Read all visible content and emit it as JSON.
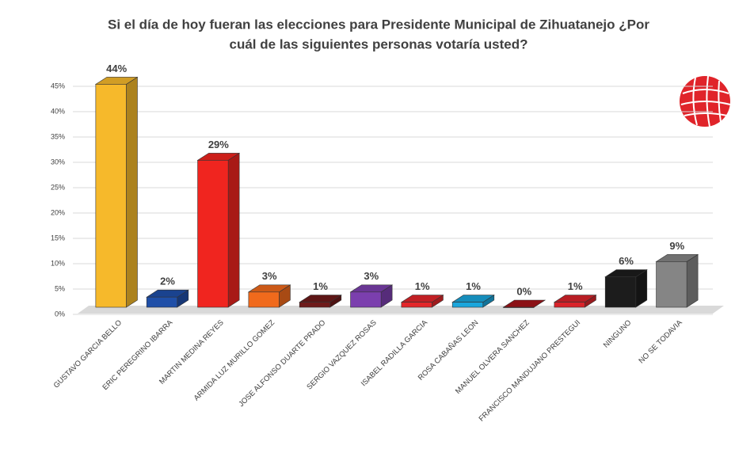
{
  "chart_data": {
    "type": "bar3d",
    "title": [
      "Si el día de hoy fueran las elecciones para Presidente Municipal de Zihuatanejo ¿Por",
      "cuál de las siguientes personas votaría usted?"
    ],
    "categories": [
      "GUSTAVO GARCIA BELLO",
      "ERIC PEREGRINO IBARRA",
      "MARTIN MEDINA REYES",
      "ARMIDA LUZ MURILLO GOMEZ",
      "JOSE ALFONSO DUARTE PRADO",
      "SERGIO VAZQUEZ ROSAS",
      "ISABEL RADILLA GARCIA",
      "ROSA CABAÑAS LEON",
      "MANUEL OLVERA SANCHEZ",
      "FRANCISCO MANDUJANO PRESTEGUI",
      "NINGUNO",
      "NO SE TODAVIA"
    ],
    "values": [
      44,
      2,
      29,
      3,
      1,
      3,
      1,
      1,
      0,
      1,
      6,
      9
    ],
    "value_labels": [
      "44%",
      "2%",
      "29%",
      "3%",
      "1%",
      "3%",
      "1%",
      "1%",
      "0%",
      "1%",
      "6%",
      "9%"
    ],
    "colors": [
      "#f6b92b",
      "#1f4fa8",
      "#f0251f",
      "#f06a1c",
      "#6e1a1a",
      "#7b3fae",
      "#e3262a",
      "#1aa6dc",
      "#a5141a",
      "#d9232a",
      "#1c1c1c",
      "#858585"
    ],
    "ylim": [
      0,
      45
    ],
    "yticks": [
      {
        "value": 0,
        "label": "0%"
      },
      {
        "value": 5,
        "label": "5%"
      },
      {
        "value": 10,
        "label": "10%"
      },
      {
        "value": 15,
        "label": "15%"
      },
      {
        "value": 20,
        "label": "20%"
      },
      {
        "value": 25,
        "label": "25%"
      },
      {
        "value": 30,
        "label": "30%"
      },
      {
        "value": 35,
        "label": "35%"
      },
      {
        "value": 40,
        "label": "40%"
      },
      {
        "value": 45,
        "label": "45%"
      }
    ],
    "grid": true
  }
}
